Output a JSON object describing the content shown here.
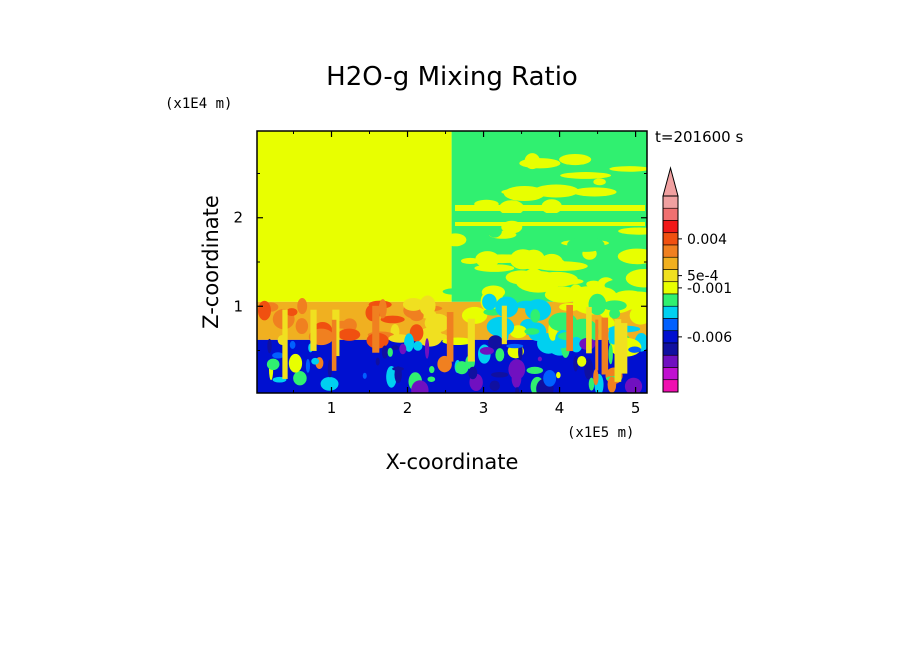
{
  "chart_data": {
    "type": "heatmap",
    "title": "H2O-g Mixing Ratio",
    "xlabel": "X-coordinate",
    "ylabel": "Z-coordinate",
    "x_unit": "(x1E5 m)",
    "y_unit": "(x1E4 m)",
    "time_label": "t=201600 s",
    "xlim": [
      0.02,
      5.15
    ],
    "ylim": [
      0.02,
      2.98
    ],
    "x_ticks": [
      "1",
      "2",
      "3",
      "4",
      "5"
    ],
    "x_tick_values": [
      1,
      2,
      3,
      4,
      5
    ],
    "y_ticks": [
      "1",
      "2"
    ],
    "y_tick_values": [
      1,
      2
    ],
    "colorbar": {
      "levels_top_to_bottom": [
        "#f0a0a0",
        "#f07070",
        "#f01818",
        "#f05010",
        "#f08020",
        "#f0b020",
        "#f0e020",
        "#e8ff00",
        "#30f070",
        "#00d0f0",
        "#0060ff",
        "#0010d0",
        "#1010a0",
        "#7010c0",
        "#c010d0",
        "#f010b0"
      ],
      "tick_labels": [
        "0.004",
        "5e-4",
        "-0.001",
        "-0.006"
      ],
      "tick_level_positions": [
        3.5,
        6.5,
        7.5,
        11.5
      ],
      "arrow_color": "#f0a0a0"
    },
    "regions": [
      {
        "x0": 0.02,
        "x1": 2.58,
        "z0": 1.05,
        "z1": 2.98,
        "color": "#e8ff00"
      },
      {
        "x0": 2.58,
        "x1": 5.15,
        "z0": 1.05,
        "z1": 2.98,
        "color": "#30f070"
      },
      {
        "x0": 0.02,
        "x1": 5.15,
        "z0": 0.62,
        "z1": 1.05,
        "color": "#f0b020"
      },
      {
        "x0": 0.02,
        "x1": 5.15,
        "z0": 0.02,
        "z1": 0.62,
        "color": "#0010d0"
      }
    ]
  }
}
